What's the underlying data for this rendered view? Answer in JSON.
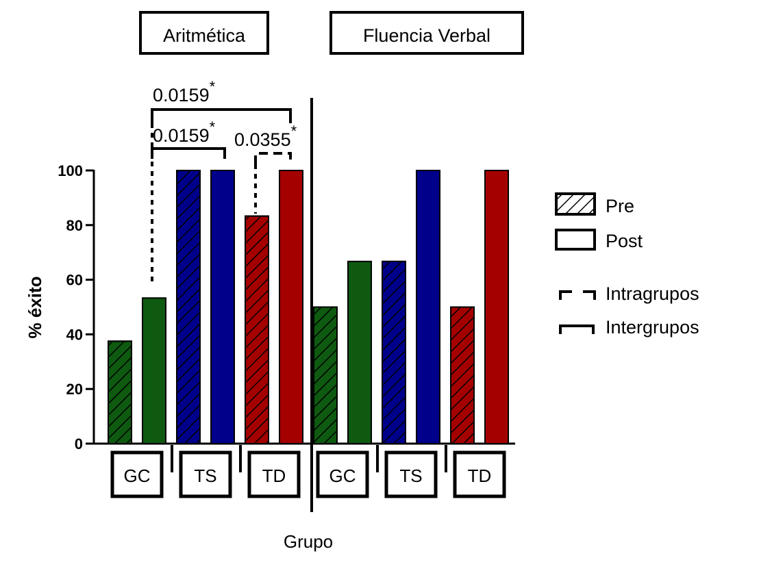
{
  "chart_data": {
    "type": "bar",
    "ylabel": "% éxito",
    "xlabel": "Grupo",
    "ylim": [
      0,
      100
    ],
    "yticks": [
      0,
      20,
      40,
      60,
      80,
      100
    ],
    "legend": {
      "placement": "right",
      "items": [
        {
          "key": "pre",
          "label": "Pre"
        },
        {
          "key": "post",
          "label": "Post"
        },
        {
          "key": "intra",
          "label": "Intragrupos"
        },
        {
          "key": "inter",
          "label": "Intergrupos"
        }
      ]
    },
    "colors": {
      "GC": "#0e5a10",
      "TS": "#00008b",
      "TD": "#a50000"
    },
    "panels": [
      {
        "title": "Aritmética",
        "groups": [
          {
            "name": "GC",
            "pre": 37.5,
            "post": 53.3
          },
          {
            "name": "TS",
            "pre": 100,
            "post": 100
          },
          {
            "name": "TD",
            "pre": 83.3,
            "post": 100
          }
        ],
        "annotations": [
          {
            "label": "0.0159",
            "mark": "*",
            "type": "intergrupos",
            "from": "GC post",
            "to": "TD post"
          },
          {
            "label": "0.0159",
            "mark": "*",
            "type": "intergrupos",
            "from": "GC post",
            "to": "TS post"
          },
          {
            "label": "0.0355",
            "mark": "*",
            "type": "intragrupos",
            "from": "TD pre",
            "to": "TD post"
          }
        ]
      },
      {
        "title": "Fluencia Verbal",
        "groups": [
          {
            "name": "GC",
            "pre": 50,
            "post": 66.7
          },
          {
            "name": "TS",
            "pre": 66.7,
            "post": 100
          },
          {
            "name": "TD",
            "pre": 50,
            "post": 100
          }
        ],
        "annotations": []
      }
    ]
  }
}
